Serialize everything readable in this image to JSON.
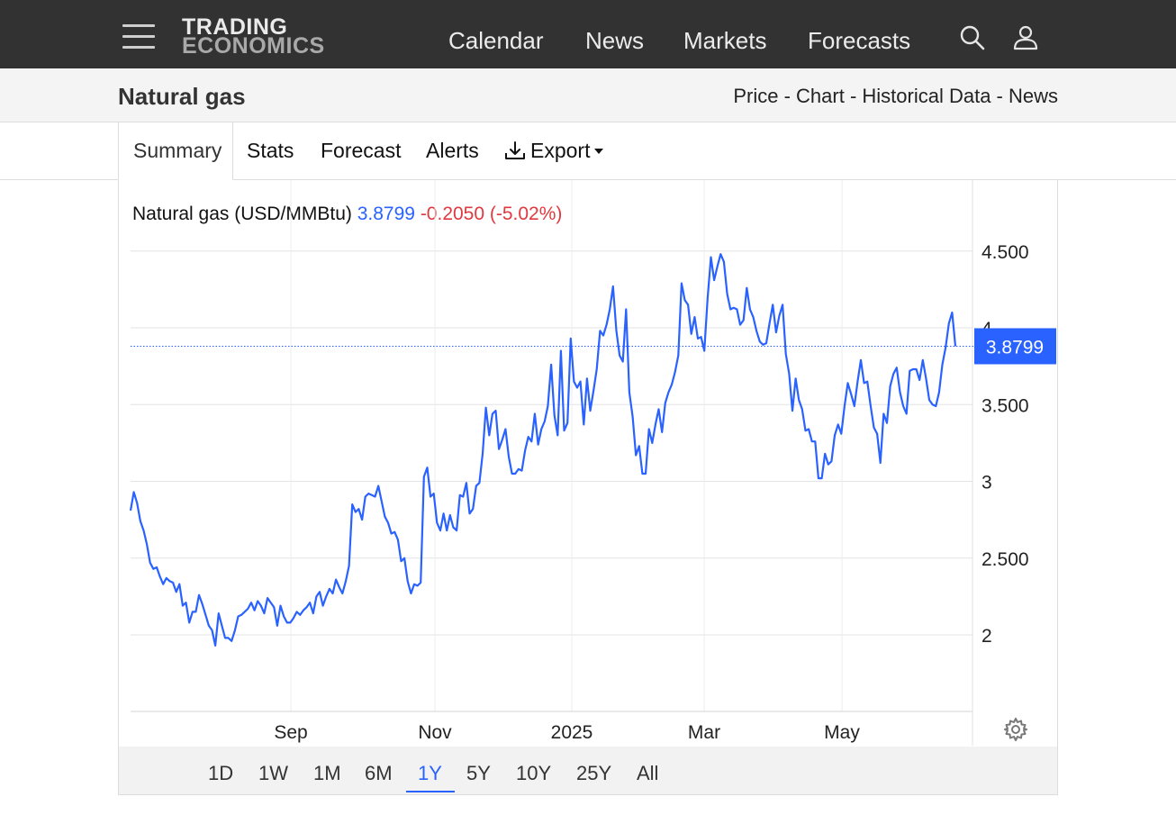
{
  "header": {
    "logo_line1": "TRADING",
    "logo_line2": "ECONOMICS",
    "nav": [
      "Calendar",
      "News",
      "Markets",
      "Forecasts"
    ]
  },
  "page": {
    "title": "Natural gas",
    "links": "Price - Chart - Historical Data - News"
  },
  "tabs": {
    "summary": "Summary",
    "stats": "Stats",
    "forecast": "Forecast",
    "alerts": "Alerts",
    "export": "Export"
  },
  "quote": {
    "name": "Natural gas (USD/MMBtu)",
    "price": "3.8799",
    "change": "-0.2050 (-5.02%)"
  },
  "ranges": [
    "1D",
    "1W",
    "1M",
    "6M",
    "1Y",
    "5Y",
    "10Y",
    "25Y",
    "All"
  ],
  "active_range": "1Y",
  "colors": {
    "line": "#2962ff",
    "negative": "#e0393e",
    "topbar": "#323232"
  },
  "chart_data": {
    "type": "line",
    "series": [
      {
        "values": [
          2.81,
          2.93,
          2.86,
          2.74,
          2.68,
          2.59,
          2.47,
          2.43,
          2.44,
          2.38,
          2.33,
          2.37,
          2.35,
          2.34,
          2.28,
          2.33,
          2.19,
          2.21,
          2.08,
          2.15,
          2.15,
          2.26,
          2.2,
          2.13,
          2.06,
          2.03,
          1.93,
          2.14,
          2.06,
          1.98,
          1.98,
          1.96,
          2.03,
          2.12,
          2.13,
          2.15,
          2.17,
          2.21,
          2.16,
          2.22,
          2.19,
          2.14,
          2.24,
          2.21,
          2.18,
          2.06,
          2.19,
          2.12,
          2.08,
          2.08,
          2.11,
          2.15,
          2.13,
          2.16,
          2.18,
          2.21,
          2.14,
          2.25,
          2.28,
          2.19,
          2.25,
          2.3,
          2.27,
          2.36,
          2.31,
          2.27,
          2.35,
          2.45,
          2.85,
          2.8,
          2.82,
          2.75,
          2.9,
          2.92,
          2.91,
          2.9,
          2.97,
          2.87,
          2.77,
          2.73,
          2.66,
          2.67,
          2.62,
          2.48,
          2.5,
          2.35,
          2.27,
          2.33,
          2.32,
          2.34,
          3.03,
          3.09,
          2.9,
          2.92,
          2.73,
          2.68,
          2.79,
          2.68,
          2.78,
          2.7,
          2.68,
          2.91,
          2.9,
          2.99,
          2.79,
          2.82,
          2.97,
          2.99,
          3.18,
          3.48,
          3.3,
          3.44,
          3.46,
          3.21,
          3.27,
          3.34,
          3.16,
          3.05,
          3.05,
          3.08,
          3.07,
          3.2,
          3.29,
          3.26,
          3.44,
          3.24,
          3.34,
          3.39,
          3.49,
          3.76,
          3.43,
          3.3,
          3.85,
          3.33,
          3.38,
          3.93,
          3.65,
          3.61,
          3.65,
          3.37,
          3.67,
          3.46,
          3.59,
          3.73,
          3.98,
          3.95,
          4.02,
          4.12,
          4.27,
          3.98,
          3.82,
          3.78,
          4.12,
          3.58,
          3.42,
          3.17,
          3.23,
          3.05,
          3.05,
          3.34,
          3.25,
          3.37,
          3.47,
          3.32,
          3.51,
          3.58,
          3.63,
          3.71,
          3.82,
          4.29,
          4.18,
          4.15,
          3.96,
          4.07,
          3.93,
          3.94,
          3.85,
          4.19,
          4.46,
          4.31,
          4.4,
          4.48,
          4.43,
          4.22,
          4.12,
          4.13,
          4.12,
          4.02,
          4.05,
          4.26,
          4.12,
          4.07,
          3.98,
          3.91,
          3.89,
          3.9,
          4.03,
          4.15,
          3.97,
          4.08,
          4.15,
          3.83,
          3.7,
          3.46,
          3.67,
          3.53,
          3.47,
          3.33,
          3.34,
          3.26,
          3.26,
          3.02,
          3.02,
          3.18,
          3.11,
          3.13,
          3.3,
          3.37,
          3.31,
          3.49,
          3.64,
          3.57,
          3.49,
          3.65,
          3.79,
          3.64,
          3.65,
          3.49,
          3.35,
          3.31,
          3.12,
          3.44,
          3.38,
          3.62,
          3.7,
          3.74,
          3.58,
          3.49,
          3.44,
          3.72,
          3.73,
          3.73,
          3.66,
          3.79,
          3.67,
          3.53,
          3.5,
          3.49,
          3.58,
          3.76,
          3.87,
          4.03,
          4.1,
          3.88
        ]
      }
    ],
    "x_tick_labels": [
      "Sep",
      "Nov",
      "2025",
      "Mar",
      "May"
    ],
    "y_tick_labels": [
      "2",
      "2.500",
      "3",
      "3.500",
      "4",
      "4.500"
    ],
    "y_ticks": [
      2,
      2.5,
      3,
      3.5,
      4,
      4.5
    ],
    "ylim": [
      1.5,
      4.8
    ],
    "last_label": "3.8799",
    "last_value": 3.8799,
    "grid": true
  }
}
